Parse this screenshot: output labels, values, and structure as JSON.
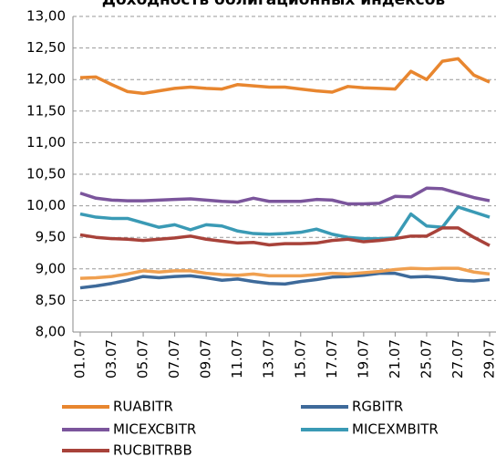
{
  "chart_data": {
    "type": "line",
    "title": "Доходность облигационных индексов",
    "categories": [
      "01.07",
      null,
      "03.07",
      null,
      "05.07",
      null,
      "07.07",
      null,
      "09.07",
      null,
      "11.07",
      null,
      "13.07",
      null,
      "15.07",
      null,
      "17.07",
      null,
      "19.07",
      null,
      "21.07",
      null,
      "25.07",
      null,
      "27.07",
      null,
      "29.07"
    ],
    "series": [
      {
        "name": "RUABITR",
        "color": "#e8862f",
        "values": [
          12.03,
          12.04,
          11.92,
          11.81,
          11.78,
          11.82,
          11.86,
          11.88,
          11.86,
          11.85,
          11.92,
          11.9,
          11.88,
          11.88,
          11.85,
          11.82,
          11.8,
          11.89,
          11.87,
          11.86,
          11.85,
          12.13,
          12.0,
          12.29,
          12.33,
          12.07,
          11.96
        ]
      },
      {
        "name": "RGBITR",
        "color": "#3e6a9a",
        "values": [
          8.7,
          8.73,
          8.77,
          8.82,
          8.88,
          8.86,
          8.88,
          8.89,
          8.86,
          8.82,
          8.84,
          8.8,
          8.77,
          8.76,
          8.8,
          8.83,
          8.87,
          8.88,
          8.9,
          8.93,
          8.93,
          8.87,
          8.88,
          8.86,
          8.82,
          8.81,
          8.83
        ]
      },
      {
        "name": "MICEXCBITR",
        "color": "#7b559c",
        "values": [
          10.2,
          10.12,
          10.09,
          10.08,
          10.08,
          10.09,
          10.1,
          10.11,
          10.09,
          10.07,
          10.06,
          10.12,
          10.07,
          10.07,
          10.07,
          10.1,
          10.09,
          10.03,
          10.03,
          10.04,
          10.15,
          10.14,
          10.28,
          10.27,
          10.2,
          10.13,
          10.08
        ]
      },
      {
        "name": "MICEXMBITR",
        "color": "#3a9ab5",
        "values": [
          9.87,
          9.82,
          9.8,
          9.8,
          9.73,
          9.66,
          9.7,
          9.62,
          9.7,
          9.68,
          9.6,
          9.56,
          9.55,
          9.56,
          9.58,
          9.63,
          9.55,
          9.5,
          9.48,
          9.48,
          9.49,
          9.87,
          9.68,
          9.66,
          9.98,
          9.9,
          9.82
        ]
      },
      {
        "name": "RUCBITRBB",
        "color": "#a8423a",
        "values": [
          9.54,
          9.5,
          9.48,
          9.47,
          9.45,
          9.47,
          9.49,
          9.52,
          9.47,
          9.44,
          9.41,
          9.42,
          9.38,
          9.4,
          9.4,
          9.41,
          9.45,
          9.47,
          9.43,
          9.45,
          9.48,
          9.52,
          9.52,
          9.65,
          9.65,
          9.5,
          9.37
        ]
      },
      {
        "color": "#f0a050",
        "values": [
          8.85,
          8.86,
          8.88,
          8.92,
          8.97,
          8.95,
          8.97,
          8.97,
          8.93,
          8.91,
          8.9,
          8.92,
          8.89,
          8.89,
          8.89,
          8.91,
          8.93,
          8.92,
          8.94,
          8.96,
          8.99,
          9.01,
          9.0,
          9.01,
          9.01,
          8.95,
          8.92
        ]
      }
    ],
    "ylim": [
      8,
      13
    ],
    "yticks": [
      {
        "value": 8,
        "label": "8,00"
      },
      {
        "value": 8.5,
        "label": "8,50"
      },
      {
        "value": 9,
        "label": "9,00"
      },
      {
        "value": 9.5,
        "label": "9,50"
      },
      {
        "value": 10,
        "label": "10,00"
      },
      {
        "value": 10.5,
        "label": "10,50"
      },
      {
        "value": 11,
        "label": "11,00"
      },
      {
        "value": 11.5,
        "label": "11,50"
      },
      {
        "value": 12,
        "label": "12,00"
      },
      {
        "value": 12.5,
        "label": "12,50"
      },
      {
        "value": 13,
        "label": "13,00"
      }
    ],
    "grid": true
  }
}
